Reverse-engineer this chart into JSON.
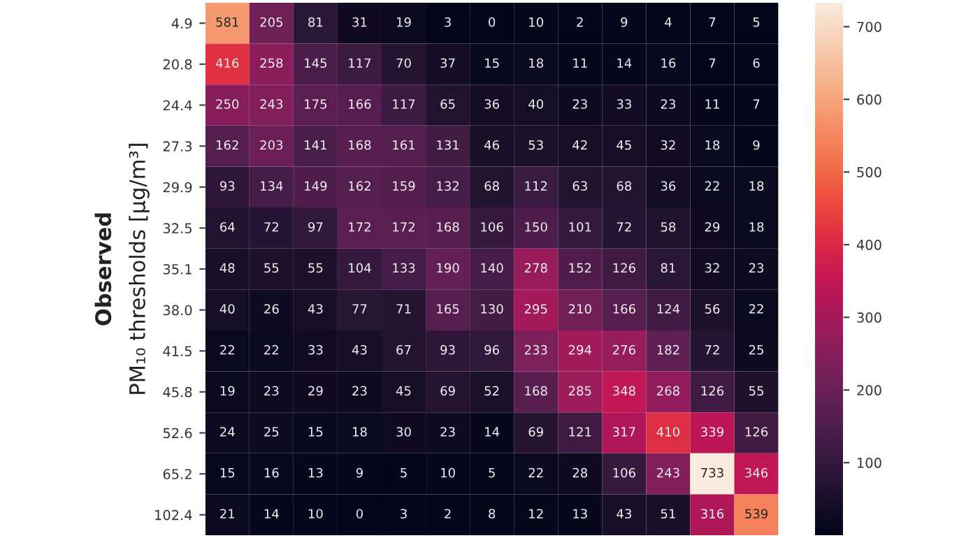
{
  "chart_data": {
    "type": "heatmap",
    "ylabel": "Observed\nPM₁₀ thresholds [μg/m³]",
    "categories": [
      null,
      null,
      null,
      null,
      null,
      null,
      null,
      null,
      null,
      null,
      null,
      null,
      null
    ],
    "y_categories": [
      "4.9",
      "20.8",
      "24.4",
      "27.3",
      "29.9",
      "32.5",
      "35.1",
      "38.0",
      "41.5",
      "45.8",
      "52.6",
      "65.2",
      "102.4"
    ],
    "cells": [
      [
        581,
        205,
        81,
        31,
        19,
        3,
        0,
        10,
        2,
        9,
        4,
        7,
        5
      ],
      [
        416,
        258,
        145,
        117,
        70,
        37,
        15,
        18,
        11,
        14,
        16,
        7,
        6
      ],
      [
        250,
        243,
        175,
        166,
        117,
        65,
        36,
        40,
        23,
        33,
        23,
        11,
        7
      ],
      [
        162,
        203,
        141,
        168,
        161,
        131,
        46,
        53,
        42,
        45,
        32,
        18,
        9
      ],
      [
        93,
        134,
        149,
        162,
        159,
        132,
        68,
        112,
        63,
        68,
        36,
        22,
        18
      ],
      [
        64,
        72,
        97,
        172,
        172,
        168,
        106,
        150,
        101,
        72,
        58,
        29,
        18
      ],
      [
        48,
        55,
        55,
        104,
        133,
        190,
        140,
        278,
        152,
        126,
        81,
        32,
        23
      ],
      [
        40,
        26,
        43,
        77,
        71,
        165,
        130,
        295,
        210,
        166,
        124,
        56,
        22
      ],
      [
        22,
        22,
        33,
        43,
        67,
        93,
        96,
        233,
        294,
        276,
        182,
        72,
        25
      ],
      [
        19,
        23,
        29,
        23,
        45,
        69,
        52,
        168,
        285,
        348,
        268,
        126,
        55
      ],
      [
        24,
        25,
        15,
        18,
        30,
        23,
        14,
        69,
        121,
        317,
        410,
        339,
        126
      ],
      [
        15,
        16,
        13,
        9,
        5,
        10,
        5,
        22,
        28,
        106,
        243,
        733,
        346
      ],
      [
        21,
        14,
        10,
        0,
        3,
        2,
        8,
        12,
        13,
        43,
        51,
        316,
        539
      ]
    ],
    "data_labels": true,
    "clim": [
      0,
      733
    ],
    "cticks": [
      100,
      200,
      300,
      400,
      500,
      600,
      700
    ],
    "tick_labels": "y"
  }
}
